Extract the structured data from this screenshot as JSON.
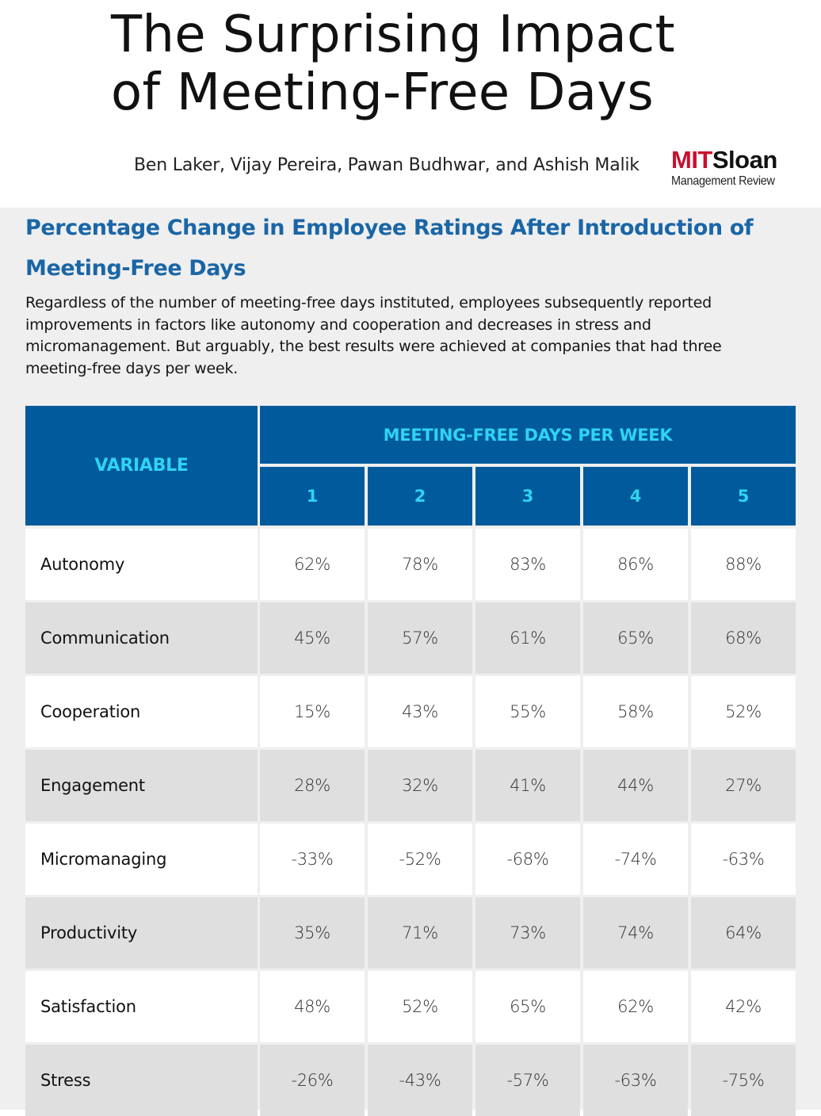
{
  "header": {
    "title_line1": "The Surprising Impact",
    "title_line2": "of Meeting-Free Days",
    "authors": "Ben Laker, Vijay Pereira, Pawan Budhwar, and Ashish Malik",
    "logo": {
      "mit": "MIT",
      "sloan": "Sloan",
      "sub": "Management Review",
      "colors": {
        "mit": "#c8102e",
        "sloan": "#111111"
      }
    }
  },
  "main": {
    "subtitle": "Percentage Change in Employee Ratings After Introduction of Meeting-Free Days",
    "description": "Regardless of the number of meeting-free days instituted, employees subsequently reported improvements in factors like autonomy and cooperation and decreases in stress and micromanagement. But arguably, the best results were achieved at companies that had three meeting-free days per week."
  },
  "table": {
    "var_header": "VARIABLE",
    "group_header": "MEETING-FREE DAYS PER WEEK",
    "columns": [
      "1",
      "2",
      "3",
      "4",
      "5"
    ],
    "rows": [
      {
        "variable": "Autonomy",
        "values": [
          "62%",
          "78%",
          "83%",
          "86%",
          "88%"
        ]
      },
      {
        "variable": "Communication",
        "values": [
          "45%",
          "57%",
          "61%",
          "65%",
          "68%"
        ]
      },
      {
        "variable": "Cooperation",
        "values": [
          "15%",
          "43%",
          "55%",
          "58%",
          "52%"
        ]
      },
      {
        "variable": "Engagement",
        "values": [
          "28%",
          "32%",
          "41%",
          "44%",
          "27%"
        ]
      },
      {
        "variable": "Micromanaging",
        "values": [
          "-33%",
          "-52%",
          "-68%",
          "-74%",
          "-63%"
        ]
      },
      {
        "variable": "Productivity",
        "values": [
          "35%",
          "71%",
          "73%",
          "74%",
          "64%"
        ]
      },
      {
        "variable": "Satisfaction",
        "values": [
          "48%",
          "52%",
          "65%",
          "62%",
          "42%"
        ]
      },
      {
        "variable": "Stress",
        "values": [
          "-26%",
          "-43%",
          "-57%",
          "-63%",
          "-75%"
        ]
      }
    ],
    "colors": {
      "header_bg": "#005a9c",
      "header_text": "#2fd3f2",
      "row_alt": "#dfdfdf",
      "accent": "#1a66a6"
    }
  }
}
